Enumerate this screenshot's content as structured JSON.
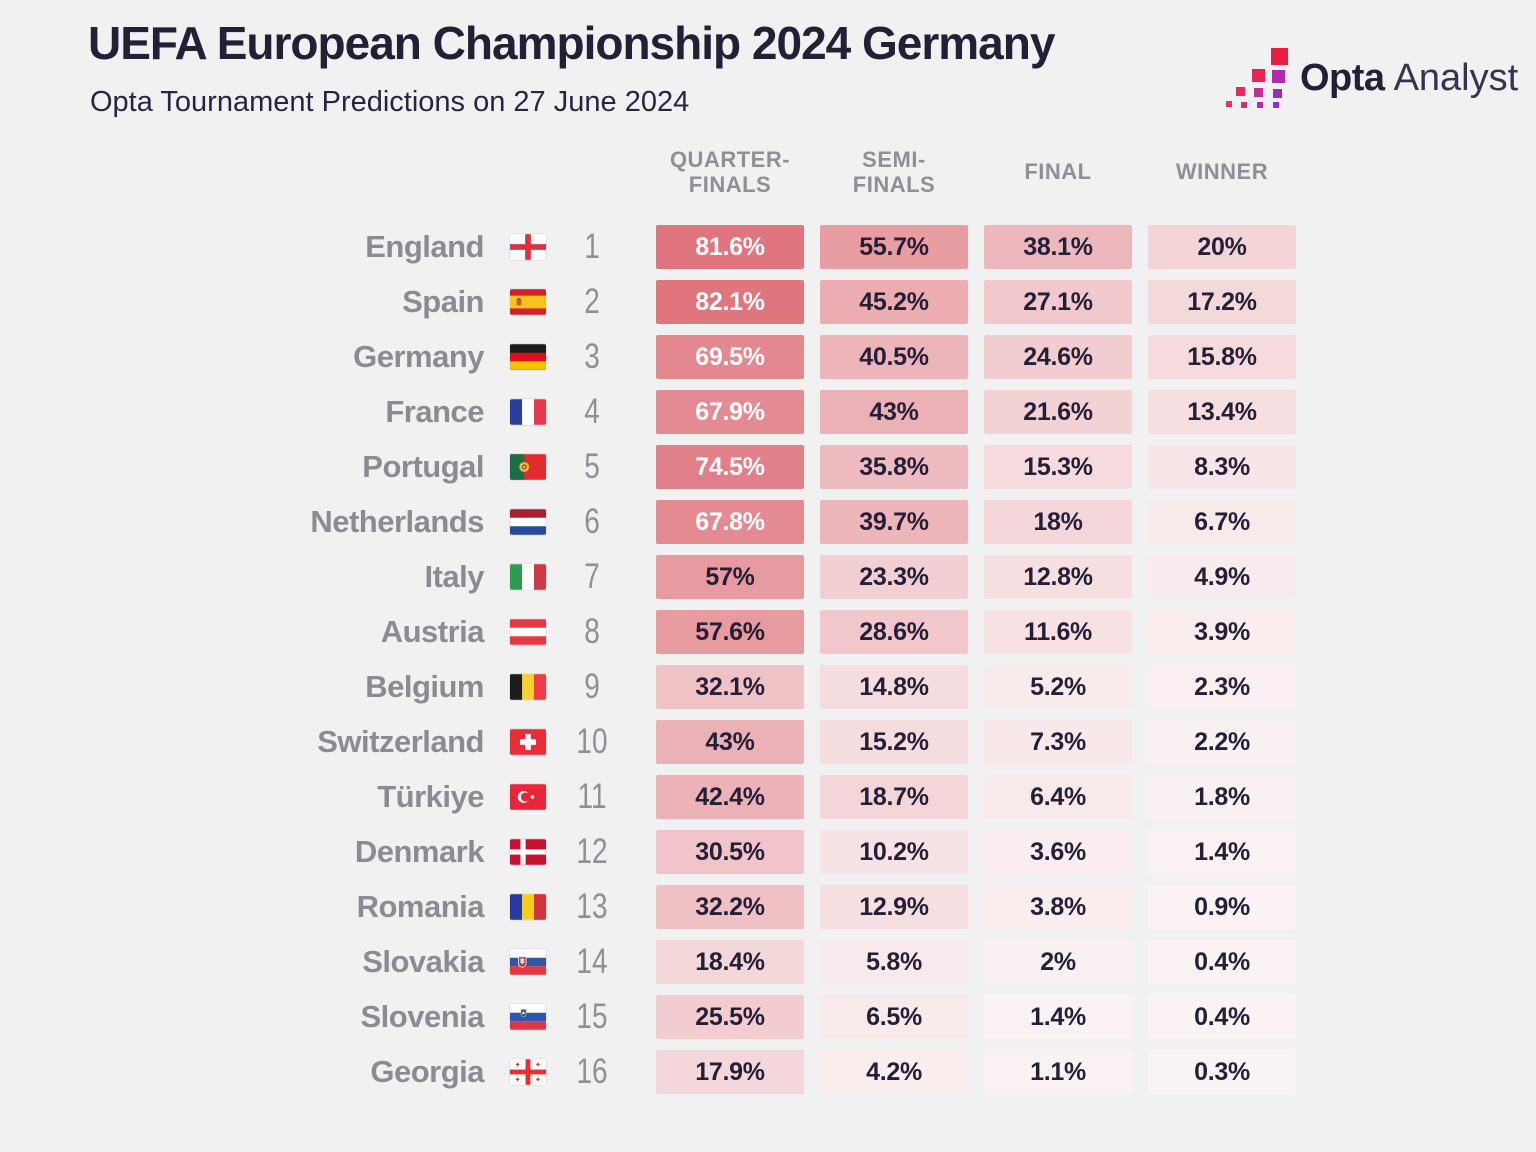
{
  "title": "UEFA European Championship 2024 Germany",
  "subtitle": "Opta Tournament Predictions on 27 June 2024",
  "logo": {
    "opta": "Opta",
    "analyst": "Analyst",
    "icon_colors": [
      "#ea1e43",
      "#e62553",
      "#b42ba6",
      "#e62a5c",
      "#c42d92",
      "#9c2cc0",
      "#e73260",
      "#cf2f85",
      "#ad2db5",
      "#8e2ed0"
    ]
  },
  "headers": [
    "QUARTER-\nFINALS",
    "SEMI-\nFINALS",
    "FINAL",
    "WINNER"
  ],
  "colors": {
    "background": "#f2f1f2",
    "title_text": "#241e36",
    "muted_text": "#8b8b93",
    "header_text": "#8f8f97",
    "text_dark": "#241e36",
    "text_light": "#ffffff",
    "scale_low": "#faf3f4",
    "scale_high": "#d95963",
    "white_text_threshold": 60
  },
  "chart_data": {
    "type": "table",
    "title": "UEFA European Championship 2024 Germany — Opta Tournament Predictions on 27 June 2024",
    "columns": [
      "Quarter-finals",
      "Semi-finals",
      "Final",
      "Winner"
    ],
    "unit": "%",
    "rows": [
      {
        "team": "England",
        "flag": "england",
        "rank": "1",
        "values": [
          81.6,
          55.7,
          38.1,
          20
        ],
        "display": [
          "81.6%",
          "55.7%",
          "38.1%",
          "20%"
        ]
      },
      {
        "team": "Spain",
        "flag": "spain",
        "rank": "2",
        "values": [
          82.1,
          45.2,
          27.1,
          17.2
        ],
        "display": [
          "82.1%",
          "45.2%",
          "27.1%",
          "17.2%"
        ]
      },
      {
        "team": "Germany",
        "flag": "germany",
        "rank": "3",
        "values": [
          69.5,
          40.5,
          24.6,
          15.8
        ],
        "display": [
          "69.5%",
          "40.5%",
          "24.6%",
          "15.8%"
        ]
      },
      {
        "team": "France",
        "flag": "france",
        "rank": "4",
        "values": [
          67.9,
          43,
          21.6,
          13.4
        ],
        "display": [
          "67.9%",
          "43%",
          "21.6%",
          "13.4%"
        ]
      },
      {
        "team": "Portugal",
        "flag": "portugal",
        "rank": "5",
        "values": [
          74.5,
          35.8,
          15.3,
          8.3
        ],
        "display": [
          "74.5%",
          "35.8%",
          "15.3%",
          "8.3%"
        ]
      },
      {
        "team": "Netherlands",
        "flag": "netherlands",
        "rank": "6",
        "values": [
          67.8,
          39.7,
          18,
          6.7
        ],
        "display": [
          "67.8%",
          "39.7%",
          "18%",
          "6.7%"
        ]
      },
      {
        "team": "Italy",
        "flag": "italy",
        "rank": "7",
        "values": [
          57,
          23.3,
          12.8,
          4.9
        ],
        "display": [
          "57%",
          "23.3%",
          "12.8%",
          "4.9%"
        ]
      },
      {
        "team": "Austria",
        "flag": "austria",
        "rank": "8",
        "values": [
          57.6,
          28.6,
          11.6,
          3.9
        ],
        "display": [
          "57.6%",
          "28.6%",
          "11.6%",
          "3.9%"
        ]
      },
      {
        "team": "Belgium",
        "flag": "belgium",
        "rank": "9",
        "values": [
          32.1,
          14.8,
          5.2,
          2.3
        ],
        "display": [
          "32.1%",
          "14.8%",
          "5.2%",
          "2.3%"
        ]
      },
      {
        "team": "Switzerland",
        "flag": "switzerland",
        "rank": "10",
        "values": [
          43,
          15.2,
          7.3,
          2.2
        ],
        "display": [
          "43%",
          "15.2%",
          "7.3%",
          "2.2%"
        ]
      },
      {
        "team": "Türkiye",
        "flag": "turkiye",
        "rank": "11",
        "values": [
          42.4,
          18.7,
          6.4,
          1.8
        ],
        "display": [
          "42.4%",
          "18.7%",
          "6.4%",
          "1.8%"
        ]
      },
      {
        "team": "Denmark",
        "flag": "denmark",
        "rank": "12",
        "values": [
          30.5,
          10.2,
          3.6,
          1.4
        ],
        "display": [
          "30.5%",
          "10.2%",
          "3.6%",
          "1.4%"
        ]
      },
      {
        "team": "Romania",
        "flag": "romania",
        "rank": "13",
        "values": [
          32.2,
          12.9,
          3.8,
          0.9
        ],
        "display": [
          "32.2%",
          "12.9%",
          "3.8%",
          "0.9%"
        ]
      },
      {
        "team": "Slovakia",
        "flag": "slovakia",
        "rank": "14",
        "values": [
          18.4,
          5.8,
          2,
          0.4
        ],
        "display": [
          "18.4%",
          "5.8%",
          "2%",
          "0.4%"
        ]
      },
      {
        "team": "Slovenia",
        "flag": "slovenia",
        "rank": "15",
        "values": [
          25.5,
          6.5,
          1.4,
          0.4
        ],
        "display": [
          "25.5%",
          "6.5%",
          "1.4%",
          "0.4%"
        ]
      },
      {
        "team": "Georgia",
        "flag": "georgia",
        "rank": "16",
        "values": [
          17.9,
          4.2,
          1.1,
          0.3
        ],
        "display": [
          "17.9%",
          "4.2%",
          "1.1%",
          "0.3%"
        ]
      }
    ]
  }
}
